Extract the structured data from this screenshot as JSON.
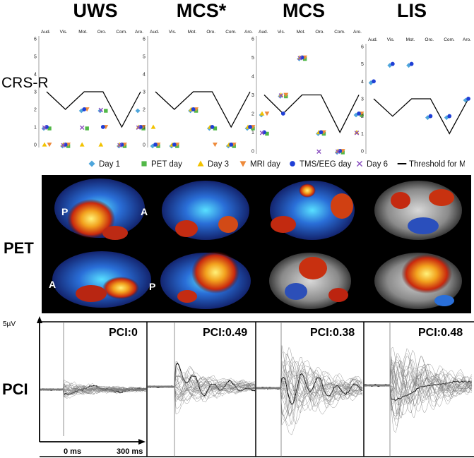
{
  "group_titles": [
    "UWS",
    "MCS*",
    "MCS",
    "LIS"
  ],
  "row_labels": {
    "crs": "CRS-R",
    "pet": "PET",
    "pci": "PCI"
  },
  "crs": {
    "x_categories": [
      "Aud.",
      "Vis.",
      "Mot.",
      "Oro.",
      "Com.",
      "Aro."
    ],
    "y_ticks": [
      "0",
      "1",
      "2",
      "3",
      "4",
      "5",
      "6"
    ],
    "legend": [
      {
        "label": "Day 1",
        "symbol": "diamond",
        "color": "#4ea6dc"
      },
      {
        "label": "PET day",
        "symbol": "square",
        "color": "#52b848"
      },
      {
        "label": "Day 3",
        "symbol": "triangle-up",
        "color": "#f2c200"
      },
      {
        "label": "MRI day",
        "symbol": "triangle-down",
        "color": "#ee8a3a"
      },
      {
        "label": "TMS/EEG day",
        "symbol": "circle",
        "color": "#1f3fd6"
      },
      {
        "label": "Day 6",
        "symbol": "x",
        "color": "#8a4fc0"
      },
      {
        "label": "Threshold for MCS",
        "symbol": "line",
        "color": "#000000"
      }
    ]
  },
  "pet": {
    "orientation_labels": {
      "top_left": "P",
      "top_right": "A",
      "bottom_left": "A",
      "bottom_right": "P"
    }
  },
  "pci": {
    "scale_label": "5µV",
    "time_start": "0 ms",
    "time_end": "300 ms",
    "values": [
      "PCI:0",
      "PCI:0.49",
      "PCI:0.38",
      "PCI:0.48"
    ]
  },
  "chart_data": [
    {
      "type": "scatter",
      "title": "UWS",
      "categories": [
        "Aud.",
        "Vis.",
        "Mot.",
        "Oro.",
        "Com.",
        "Aro."
      ],
      "ylim": [
        0,
        6
      ],
      "threshold": [
        3,
        2,
        3,
        3,
        1,
        3
      ],
      "series": [
        {
          "name": "Day 1",
          "values": [
            1,
            0,
            2,
            2,
            0,
            2
          ]
        },
        {
          "name": "PET day",
          "values": [
            1,
            0,
            1,
            2,
            0,
            1
          ]
        },
        {
          "name": "Day 3",
          "values": [
            0,
            0,
            0,
            0,
            0,
            1
          ]
        },
        {
          "name": "MRI day",
          "values": [
            0,
            0,
            2,
            1,
            0,
            1
          ]
        },
        {
          "name": "TMS/EEG day",
          "values": [
            1,
            0,
            2,
            1,
            0,
            1
          ]
        },
        {
          "name": "Day 6",
          "values": [
            1,
            0,
            1,
            2,
            0,
            1
          ]
        }
      ]
    },
    {
      "type": "scatter",
      "title": "MCS*",
      "categories": [
        "Aud.",
        "Vis.",
        "Mot.",
        "Oro.",
        "Com.",
        "Aro."
      ],
      "ylim": [
        0,
        6
      ],
      "threshold": [
        3,
        2,
        3,
        3,
        1,
        3
      ],
      "series": [
        {
          "name": "Day 1",
          "values": [
            0,
            0,
            2,
            1,
            0,
            1
          ]
        },
        {
          "name": "PET day",
          "values": [
            0,
            0,
            2,
            1,
            0,
            1
          ]
        },
        {
          "name": "Day 3",
          "values": [
            1,
            0,
            2,
            1,
            0,
            1
          ]
        },
        {
          "name": "MRI day",
          "values": [
            0,
            0,
            2,
            0,
            0,
            1
          ]
        },
        {
          "name": "TMS/EEG day",
          "values": [
            0,
            0,
            2,
            1,
            0,
            1
          ]
        }
      ]
    },
    {
      "type": "scatter",
      "title": "MCS",
      "categories": [
        "Aud.",
        "Vis.",
        "Mot.",
        "Oro.",
        "Com.",
        "Aro."
      ],
      "ylim": [
        0,
        6
      ],
      "threshold": [
        3,
        2,
        3,
        3,
        1,
        3
      ],
      "series": [
        {
          "name": "Day 1",
          "values": [
            2,
            3,
            5,
            1,
            0,
            2
          ]
        },
        {
          "name": "PET day",
          "values": [
            1,
            3,
            5,
            1,
            0,
            2
          ]
        },
        {
          "name": "Day 3",
          "values": [
            2,
            3,
            5,
            1,
            0,
            1
          ]
        },
        {
          "name": "MRI day",
          "values": [
            2,
            3,
            5,
            1,
            0,
            2
          ]
        },
        {
          "name": "TMS/EEG day",
          "values": [
            1,
            2,
            5,
            1,
            0,
            2
          ]
        },
        {
          "name": "Day 6",
          "values": [
            1,
            3,
            5,
            0,
            0,
            1
          ]
        }
      ]
    },
    {
      "type": "scatter",
      "title": "LIS",
      "categories": [
        "Aud.",
        "Vis.",
        "Mot.",
        "Oro.",
        "Com.",
        "Aro."
      ],
      "ylim": [
        0,
        6
      ],
      "threshold": [
        3,
        2,
        3,
        3,
        1,
        3
      ],
      "series": [
        {
          "name": "Day 1",
          "values": [
            4,
            5,
            5,
            2,
            2,
            3
          ]
        },
        {
          "name": "TMS/EEG day",
          "values": [
            4,
            5,
            5,
            2,
            2,
            3
          ]
        }
      ]
    }
  ]
}
